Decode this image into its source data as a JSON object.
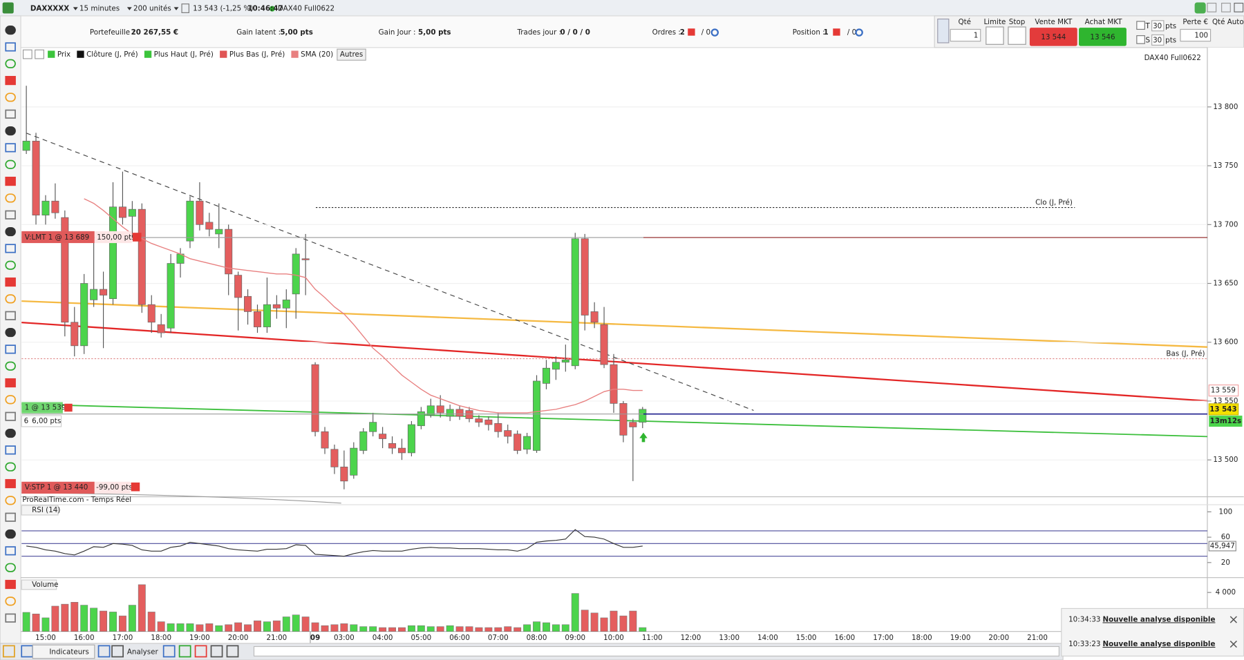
{
  "toolbar": {
    "instrument": "DAXXXXX",
    "period": "15 minutes",
    "units": "200 unités",
    "quote": "13 543 (-1,25 %)",
    "time": "10:46:47",
    "feed": "DAX40 Full0622"
  },
  "account": {
    "portfolio_label": "Portefeuille :",
    "portfolio": "20 267,55 €",
    "latent_label": "Gain latent :",
    "latent": "5,00 pts",
    "day_label": "Gain Jour :",
    "day": "5,00 pts",
    "trades_label": "Trades jour :",
    "trades": "0 / 0 / 0",
    "orders_label": "Ordres :",
    "orders": "2",
    "orders_rest": "/ 0",
    "position_label": "Position :",
    "position": "1",
    "position_rest": "/ 0"
  },
  "trade_panel": {
    "qty_label": "Qté",
    "qty": "1",
    "limit_label": "Limite",
    "stop_label": "Stop",
    "sell_label": "Vente MKT",
    "sell_price": "13 544",
    "buy_label": "Achat MKT",
    "buy_price": "13 546",
    "t_label": "T",
    "t_value": "30",
    "t_unit": "pts",
    "s_label": "S",
    "s_value": "30",
    "s_unit": "pts",
    "loss_label": "Perte €",
    "loss_value": "100",
    "auto_label": "Qté Auto"
  },
  "chart_data": {
    "type": "candlestick",
    "watermark": "DAX40 Full0622",
    "source": "ProRealTime.com - Temps Réel",
    "legend": [
      {
        "name": "Prix",
        "color": "#3cc43c"
      },
      {
        "name": "Clôture (J, Pré)",
        "color": "#111111"
      },
      {
        "name": "Plus Haut (J, Pré)",
        "color": "#3cc43c"
      },
      {
        "name": "Plus Bas (J, Pré)",
        "color": "#e05555"
      },
      {
        "name": "SMA (20)",
        "color": "#e88080"
      }
    ],
    "legend_more": "Autres",
    "up_color": "#4cd44c",
    "down_color": "#e45e5e",
    "grid": true,
    "ylim": [
      13470,
      13837
    ],
    "yticks": [
      {
        "value": 13500,
        "label": "13 500"
      },
      {
        "value": 13550,
        "label": "13 550"
      },
      {
        "value": 13600,
        "label": "13 600"
      },
      {
        "value": 13650,
        "label": "13 650"
      },
      {
        "value": 13700,
        "label": "13 700"
      },
      {
        "value": 13750,
        "label": "13 750"
      },
      {
        "value": 13800,
        "label": "13 800"
      }
    ],
    "categories": [
      null,
      null,
      "15:00",
      null,
      null,
      null,
      "16:00",
      null,
      null,
      null,
      "17:00",
      null,
      null,
      null,
      "18:00",
      null,
      null,
      null,
      "19:00",
      null,
      null,
      null,
      "20:00",
      null,
      null,
      null,
      "21:00",
      null,
      null,
      null,
      "09",
      null,
      null,
      "03:00",
      null,
      null,
      null,
      "04:00",
      null,
      null,
      null,
      "05:00",
      null,
      null,
      null,
      "06:00",
      null,
      null,
      null,
      "07:00",
      null,
      null,
      null,
      "08:00",
      null,
      null,
      null,
      "09:00",
      null,
      null,
      null,
      "10:00",
      null,
      null,
      null,
      "11:00",
      null,
      null,
      null,
      "12:00",
      null,
      null,
      null,
      "13:00",
      null,
      null,
      null,
      "14:00",
      null,
      null,
      null,
      "15:00",
      null,
      null,
      null,
      "16:00",
      null,
      null,
      null,
      "17:00",
      null,
      null,
      null,
      "18:00",
      null,
      null,
      null,
      "19:00",
      null,
      null,
      null,
      "20:00",
      null,
      null,
      null,
      "21:00"
    ],
    "open": [
      13763,
      13771,
      13708,
      13720,
      13706,
      13617,
      13597,
      13636,
      13645,
      13637,
      13715,
      13707,
      13713,
      13632,
      13615,
      13612,
      13667,
      13686,
      13720,
      13702,
      13692,
      13696,
      13657,
      13639,
      13626,
      13613,
      13632,
      13629,
      13641,
      13671,
      13581,
      13524,
      13509,
      13494,
      13487,
      13508,
      13524,
      13522,
      13514,
      13510,
      13506,
      13529,
      13538,
      13546,
      13537,
      13543,
      13542,
      13535,
      13534,
      13531,
      13525,
      13522,
      13509,
      13508,
      13565,
      13577,
      13583,
      13580,
      13688,
      13626,
      13615,
      13581,
      13548,
      13532,
      13532,
      null,
      null,
      null,
      null,
      null,
      null,
      null,
      null,
      null,
      null,
      null,
      null,
      null,
      null,
      null,
      null,
      null,
      null,
      null,
      null,
      null,
      null,
      null,
      null,
      null,
      null,
      null,
      null,
      null,
      null,
      null,
      null,
      null,
      null,
      null,
      null,
      null,
      null,
      null,
      null,
      null
    ],
    "high": [
      13818,
      13778,
      13725,
      13735,
      13712,
      13630,
      13658,
      13690,
      13660,
      13736,
      13745,
      13720,
      13718,
      13640,
      13624,
      13675,
      13680,
      13724,
      13736,
      13710,
      13718,
      13700,
      13660,
      13645,
      13632,
      13655,
      13640,
      13645,
      13680,
      13692,
      13583,
      13528,
      13513,
      13508,
      13515,
      13527,
      13540,
      13528,
      13520,
      13518,
      13533,
      13545,
      13552,
      13555,
      13547,
      13546,
      13545,
      13538,
      13537,
      13540,
      13530,
      13525,
      13523,
      13572,
      13585,
      13588,
      13598,
      13693,
      13692,
      13634,
      13630,
      13590,
      13550,
      13535,
      13545,
      null,
      null,
      null,
      null,
      null,
      null,
      null,
      null,
      null,
      null,
      null,
      null,
      null,
      null,
      null,
      null,
      null,
      null,
      null,
      null,
      null,
      null,
      null,
      null,
      null,
      null,
      null,
      null,
      null,
      null,
      null,
      null,
      null,
      null,
      null,
      null,
      null,
      null,
      null,
      null,
      null
    ],
    "low": [
      13760,
      13700,
      13700,
      13705,
      13605,
      13588,
      13590,
      13630,
      13595,
      13632,
      13700,
      13690,
      13625,
      13608,
      13604,
      13608,
      13655,
      13680,
      13695,
      13690,
      13680,
      13640,
      13610,
      13615,
      13608,
      13608,
      13620,
      13612,
      13620,
      13640,
      13520,
      13505,
      13488,
      13475,
      13484,
      13505,
      13520,
      13510,
      13505,
      13500,
      13503,
      13526,
      13536,
      13536,
      13533,
      13534,
      13532,
      13528,
      13525,
      13519,
      13514,
      13505,
      13505,
      13506,
      13560,
      13568,
      13575,
      13577,
      13610,
      13612,
      13578,
      13540,
      13515,
      13482,
      13527,
      null,
      null,
      null,
      null,
      null,
      null,
      null,
      null,
      null,
      null,
      null,
      null,
      null,
      null,
      null,
      null,
      null,
      null,
      null,
      null,
      null,
      null,
      null,
      null,
      null,
      null,
      null,
      null,
      null,
      null,
      null,
      null,
      null,
      null,
      null,
      null,
      null,
      null,
      null,
      null,
      null
    ],
    "close": [
      13771,
      13708,
      13720,
      13710,
      13617,
      13597,
      13650,
      13645,
      13640,
      13715,
      13706,
      13713,
      13632,
      13617,
      13608,
      13667,
      13675,
      13720,
      13700,
      13696,
      13696,
      13658,
      13638,
      13626,
      13613,
      13632,
      13629,
      13636,
      13675,
      13670,
      13524,
      13510,
      13494,
      13482,
      13510,
      13524,
      13532,
      13518,
      13510,
      13506,
      13530,
      13541,
      13546,
      13540,
      13543,
      13537,
      13535,
      13532,
      13530,
      13524,
      13520,
      13508,
      13520,
      13567,
      13578,
      13583,
      13585,
      13688,
      13623,
      13617,
      13581,
      13548,
      13521,
      13528,
      13543,
      null,
      null,
      null,
      null,
      null,
      null,
      null,
      null,
      null,
      null,
      null,
      null,
      null,
      null,
      null,
      null,
      null,
      null,
      null,
      null,
      null,
      null,
      null,
      null,
      null,
      null,
      null,
      null,
      null,
      null,
      null,
      null,
      null,
      null,
      null,
      null,
      null,
      null,
      null,
      null,
      null
    ],
    "sma": {
      "color": "#e88080",
      "values": [
        null,
        null,
        null,
        null,
        null,
        null,
        13722,
        13718,
        13712,
        13705,
        13698,
        13692,
        13688,
        13684,
        13681,
        13678,
        13675,
        13671,
        13669,
        13667,
        13665,
        13663,
        13662,
        13661,
        13660,
        13659,
        13658,
        13658,
        13657,
        13655,
        13645,
        13638,
        13630,
        13624,
        13615,
        13605,
        13595,
        13588,
        13580,
        13572,
        13566,
        13560,
        13555,
        13552,
        13549,
        13546,
        13544,
        13542,
        13541,
        13540,
        13540,
        13540,
        13540,
        13541,
        13542,
        13543,
        13545,
        13547,
        13550,
        13554,
        13558,
        13560,
        13560,
        13559,
        13559,
        null,
        null,
        null,
        null,
        null,
        null,
        null,
        null,
        null,
        null,
        null,
        null,
        null,
        null,
        null,
        null,
        null,
        null,
        null,
        null,
        null,
        null,
        null,
        null,
        null,
        null,
        null,
        null,
        null,
        null,
        null,
        null,
        null,
        null,
        null,
        null,
        null,
        null,
        null,
        null,
        null
      ]
    },
    "levels": [
      {
        "label": "Clo (J, Pré)",
        "value": 13714.5,
        "color": "#222222"
      },
      {
        "label": "Bas (J, Pré)",
        "value": 13586,
        "color": "#e08888"
      }
    ],
    "orders": [
      {
        "label": "V:LMT 1 @ 13 689",
        "pts": "150,00 pts",
        "value": 13689
      },
      {
        "label": "1 @ 13 539",
        "qty": "6",
        "pts": "6,00 pts",
        "value": 13539
      },
      {
        "label": "V:STP 1 @ 13 440",
        "pts": "-99,00 pts"
      }
    ],
    "price_tags": [
      {
        "value": 13559,
        "label": "13 559"
      },
      {
        "value": 13543,
        "label": "13 543"
      }
    ],
    "countdown": "13m12s",
    "rsi": {
      "title": "RSI (14)",
      "color": "#333333",
      "ylim": [
        0,
        100
      ],
      "yticks": [
        20,
        60,
        100
      ],
      "levels": [
        30,
        50,
        70
      ],
      "last_label": "45,947",
      "values": [
        46,
        44,
        40,
        38,
        34,
        32,
        38,
        45,
        44,
        50,
        49,
        47,
        40,
        38,
        38,
        44,
        46,
        52,
        50,
        48,
        46,
        42,
        40,
        39,
        38,
        41,
        41,
        42,
        48,
        47,
        33,
        32,
        31,
        30,
        34,
        37,
        39,
        38,
        38,
        38,
        41,
        43,
        44,
        43,
        43,
        42,
        42,
        42,
        41,
        40,
        40,
        38,
        42,
        52,
        54,
        55,
        57,
        72,
        61,
        60,
        57,
        50,
        44,
        44,
        45.947,
        null,
        null,
        null,
        null,
        null,
        null,
        null,
        null,
        null,
        null,
        null,
        null,
        null,
        null,
        null,
        null,
        null,
        null,
        null,
        null,
        null,
        null,
        null,
        null,
        null,
        null,
        null,
        null,
        null,
        null,
        null,
        null,
        null,
        null,
        null,
        null,
        null,
        null,
        null,
        null,
        null
      ]
    },
    "volume": {
      "title": "Volume",
      "ylim": [
        0,
        5200
      ],
      "yticks": [
        {
          "value": 4000,
          "label": "4 000"
        }
      ],
      "values": [
        1960,
        1800,
        1400,
        2600,
        2800,
        3000,
        2700,
        2400,
        2100,
        2000,
        1600,
        2700,
        4800,
        2000,
        1000,
        800,
        800,
        800,
        700,
        800,
        600,
        700,
        900,
        700,
        1100,
        1000,
        1100,
        1500,
        1700,
        1500,
        900,
        600,
        700,
        800,
        700,
        500,
        500,
        400,
        400,
        400,
        600,
        600,
        500,
        500,
        600,
        500,
        500,
        400,
        400,
        400,
        500,
        400,
        700,
        1000,
        900,
        700,
        700,
        3900,
        2200,
        1900,
        1400,
        2100,
        1600,
        2100,
        400,
        null,
        null,
        null,
        null,
        null,
        null,
        null,
        null,
        null,
        null,
        null,
        null,
        null,
        null,
        null,
        null,
        null,
        null,
        null,
        null,
        null,
        null,
        null,
        null,
        null,
        null,
        null,
        null,
        null,
        null,
        null,
        null,
        null,
        null,
        null,
        null,
        null,
        null,
        null,
        null,
        null
      ]
    }
  },
  "notifications": [
    {
      "time": "10:34:33",
      "text": "Nouvelle analyse disponible"
    },
    {
      "time": "10:33:23",
      "text": "Nouvelle analyse disponible"
    }
  ],
  "bottom_bar": {
    "indicators": "Indicateurs",
    "analyze": "Analyser"
  }
}
